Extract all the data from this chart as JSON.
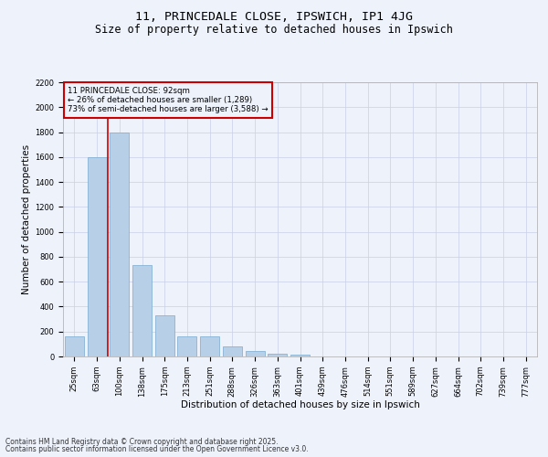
{
  "title1": "11, PRINCEDALE CLOSE, IPSWICH, IP1 4JG",
  "title2": "Size of property relative to detached houses in Ipswich",
  "xlabel": "Distribution of detached houses by size in Ipswich",
  "ylabel": "Number of detached properties",
  "bar_color": "#b8cfe8",
  "bar_edge_color": "#7aaad0",
  "categories": [
    "25sqm",
    "63sqm",
    "100sqm",
    "138sqm",
    "175sqm",
    "213sqm",
    "251sqm",
    "288sqm",
    "326sqm",
    "363sqm",
    "401sqm",
    "439sqm",
    "476sqm",
    "514sqm",
    "551sqm",
    "589sqm",
    "627sqm",
    "664sqm",
    "702sqm",
    "739sqm",
    "777sqm"
  ],
  "values": [
    165,
    1600,
    1800,
    730,
    330,
    165,
    165,
    80,
    42,
    25,
    18,
    0,
    0,
    0,
    0,
    0,
    0,
    0,
    0,
    0,
    0
  ],
  "ylim": [
    0,
    2200
  ],
  "yticks": [
    0,
    200,
    400,
    600,
    800,
    1000,
    1200,
    1400,
    1600,
    1800,
    2000,
    2200
  ],
  "vline_x": 1.5,
  "vline_color": "#cc0000",
  "annotation_box_color": "#cc0000",
  "annotation_title": "11 PRINCEDALE CLOSE: 92sqm",
  "annotation_line1": "← 26% of detached houses are smaller (1,289)",
  "annotation_line2": "73% of semi-detached houses are larger (3,588) →",
  "background_color": "#eef2fb",
  "grid_color": "#c8d0e8",
  "footer1": "Contains HM Land Registry data © Crown copyright and database right 2025.",
  "footer2": "Contains public sector information licensed under the Open Government Licence v3.0.",
  "title_fontsize": 9.5,
  "subtitle_fontsize": 8.5,
  "tick_fontsize": 6,
  "label_fontsize": 7.5,
  "annotation_fontsize": 6.2,
  "footer_fontsize": 5.5
}
